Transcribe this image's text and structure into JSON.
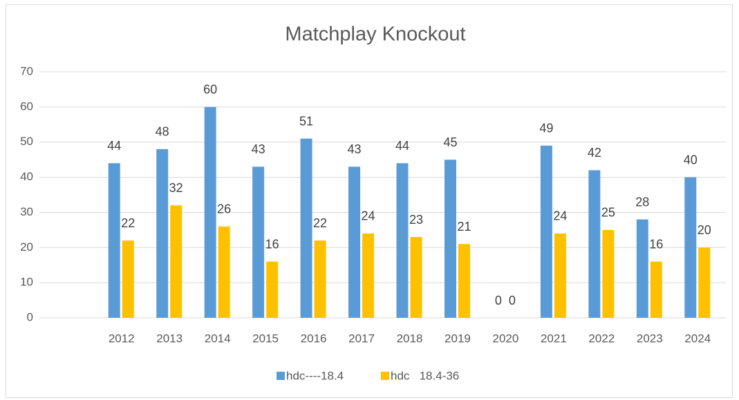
{
  "chart_data": {
    "type": "bar",
    "title": "Matchplay Knockout",
    "categories": [
      "2012",
      "2013",
      "2014",
      "2015",
      "2016",
      "2017",
      "2018",
      "2019",
      "2020",
      "2021",
      "2022",
      "2023",
      "2024"
    ],
    "series": [
      {
        "name": "hdc----18.4",
        "color": "#5b9bd5",
        "values": [
          44,
          48,
          60,
          43,
          51,
          43,
          44,
          45,
          0,
          49,
          42,
          28,
          40
        ]
      },
      {
        "name": "hdc   18.4-36",
        "color": "#ffc000",
        "values": [
          22,
          32,
          26,
          16,
          22,
          24,
          23,
          21,
          0,
          24,
          25,
          16,
          20
        ]
      }
    ],
    "ylim": [
      0,
      70
    ],
    "yticks": [
      0,
      10,
      20,
      30,
      40,
      50,
      60,
      70
    ],
    "grid": true,
    "legend": "bottom"
  }
}
